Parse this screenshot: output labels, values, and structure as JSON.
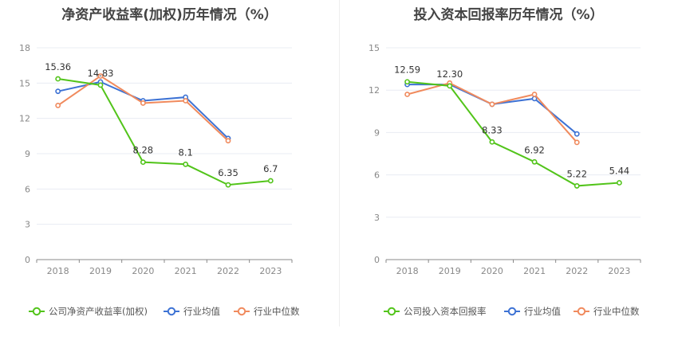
{
  "chart_data": [
    {
      "type": "line",
      "title": "净资产收益率(加权)历年情况（%）",
      "categories": [
        "2018",
        "2019",
        "2020",
        "2021",
        "2022",
        "2023"
      ],
      "ylim": [
        0,
        18
      ],
      "yticks": [
        0,
        3,
        6,
        9,
        12,
        15,
        18
      ],
      "grid": true,
      "legend_position": "bottom",
      "series": [
        {
          "name": "公司净资产收益率(加权)",
          "color": "#52c41a",
          "values": [
            15.36,
            14.83,
            8.28,
            8.1,
            6.35,
            6.7
          ],
          "labels": [
            "15.36",
            "14.83",
            "8.28",
            "8.1",
            "6.35",
            "6.7"
          ]
        },
        {
          "name": "行业均值",
          "color": "#3d72d4",
          "values": [
            14.3,
            15.1,
            13.5,
            13.8,
            10.3,
            null
          ]
        },
        {
          "name": "行业中位数",
          "color": "#f08a5d",
          "values": [
            13.1,
            15.6,
            13.3,
            13.5,
            10.1,
            null
          ]
        }
      ]
    },
    {
      "type": "line",
      "title": "投入资本回报率历年情况（%）",
      "categories": [
        "2018",
        "2019",
        "2020",
        "2021",
        "2022",
        "2023"
      ],
      "ylim": [
        0,
        15
      ],
      "yticks": [
        0,
        3,
        6,
        9,
        12,
        15
      ],
      "grid": true,
      "legend_position": "bottom",
      "series": [
        {
          "name": "公司投入资本回报率",
          "color": "#52c41a",
          "values": [
            12.59,
            12.3,
            8.33,
            6.92,
            5.22,
            5.44
          ],
          "labels": [
            "12.59",
            "12.30",
            "8.33",
            "6.92",
            "5.22",
            "5.44"
          ]
        },
        {
          "name": "行业均值",
          "color": "#3d72d4",
          "values": [
            12.4,
            12.4,
            11.0,
            11.4,
            8.9,
            null
          ]
        },
        {
          "name": "行业中位数",
          "color": "#f08a5d",
          "values": [
            11.7,
            12.5,
            11.0,
            11.7,
            8.3,
            null
          ]
        }
      ]
    }
  ]
}
